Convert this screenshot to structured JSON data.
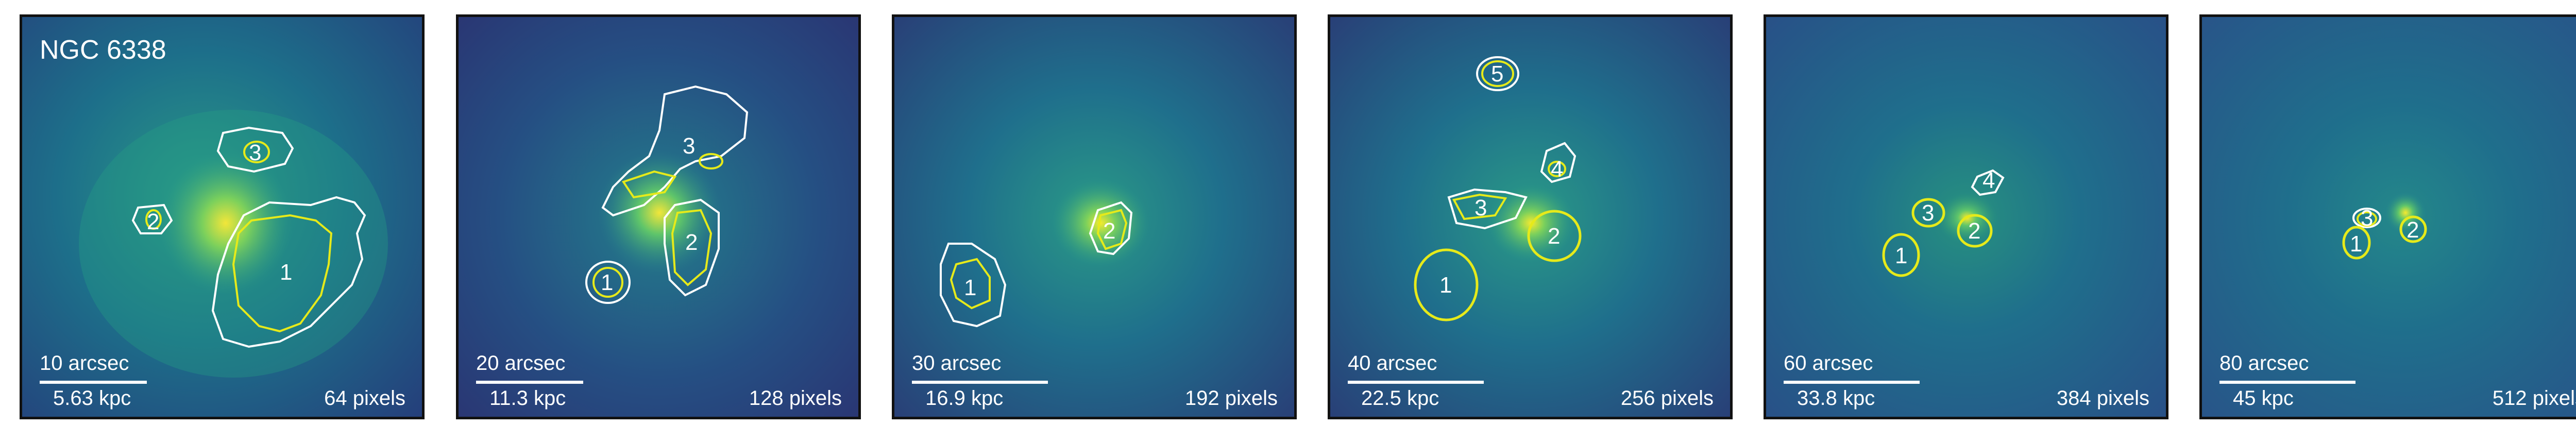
{
  "title": "NGC 6338",
  "colors": {
    "white_contour": "#ffffff",
    "yellow_contour": "#e6ea1a"
  },
  "panels": [
    {
      "arcsec": "10 arcsec",
      "kpc": "5.63 kpc",
      "pixels": "64 pixels",
      "region_labels": [
        "1",
        "2",
        "3"
      ]
    },
    {
      "arcsec": "20 arcsec",
      "kpc": "11.3 kpc",
      "pixels": "128 pixels",
      "region_labels": [
        "1",
        "2",
        "3"
      ]
    },
    {
      "arcsec": "30 arcsec",
      "kpc": "16.9 kpc",
      "pixels": "192 pixels",
      "region_labels": [
        "1",
        "2"
      ]
    },
    {
      "arcsec": "40 arcsec",
      "kpc": "22.5 kpc",
      "pixels": "256 pixels",
      "region_labels": [
        "1",
        "2",
        "3",
        "4",
        "5"
      ]
    },
    {
      "arcsec": "60 arcsec",
      "kpc": "33.8 kpc",
      "pixels": "384 pixels",
      "region_labels": [
        "1",
        "2",
        "3",
        "4"
      ]
    },
    {
      "arcsec": "80 arcsec",
      "kpc": "45 kpc",
      "pixels": "512 pixels",
      "region_labels": [
        "1",
        "2",
        "3"
      ]
    }
  ]
}
